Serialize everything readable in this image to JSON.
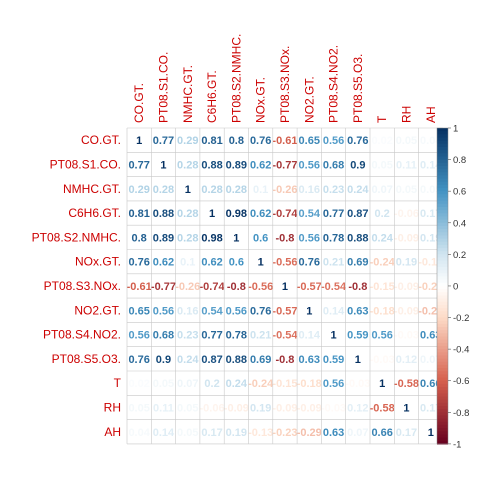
{
  "chart_data": {
    "type": "heatmap",
    "variables": [
      "CO.GT.",
      "PT08.S1.CO.",
      "NMHC.GT.",
      "C6H6.GT.",
      "PT08.S2.NMHC.",
      "NOx.GT.",
      "PT08.S3.NOx.",
      "NO2.GT.",
      "PT08.S4.NO2.",
      "PT08.S5.O3.",
      "T",
      "RH",
      "AH"
    ],
    "matrix": [
      [
        1,
        0.77,
        0.29,
        0.81,
        0.8,
        0.76,
        -0.61,
        0.65,
        0.56,
        0.76,
        0.02,
        0.05,
        0.04
      ],
      [
        0.77,
        1,
        0.28,
        0.88,
        0.89,
        0.62,
        -0.77,
        0.56,
        0.68,
        0.9,
        0.05,
        0.11,
        0.14
      ],
      [
        0.29,
        0.28,
        1,
        0.28,
        0.28,
        0.1,
        -0.26,
        0.16,
        0.23,
        0.24,
        0.07,
        0.05,
        0.05
      ],
      [
        0.81,
        0.88,
        0.28,
        1,
        0.98,
        0.62,
        -0.74,
        0.54,
        0.77,
        0.87,
        0.2,
        -0.06,
        0.17
      ],
      [
        0.8,
        0.89,
        0.28,
        0.98,
        1,
        0.6,
        -0.8,
        0.56,
        0.78,
        0.88,
        0.24,
        -0.09,
        0.19
      ],
      [
        0.76,
        0.62,
        0.1,
        0.62,
        0.6,
        1,
        -0.56,
        0.76,
        0.21,
        0.69,
        -0.24,
        0.19,
        -0.13
      ],
      [
        -0.61,
        -0.77,
        -0.26,
        -0.74,
        -0.8,
        -0.56,
        1,
        -0.57,
        -0.54,
        -0.8,
        -0.15,
        -0.09,
        -0.23
      ],
      [
        0.65,
        0.56,
        0.16,
        0.54,
        0.56,
        0.76,
        -0.57,
        1,
        0.14,
        0.63,
        -0.18,
        -0.09,
        -0.29
      ],
      [
        0.56,
        0.68,
        0.23,
        0.77,
        0.78,
        0.21,
        -0.54,
        0.14,
        1,
        0.59,
        0.56,
        -0.03,
        0.63
      ],
      [
        0.76,
        0.9,
        0.24,
        0.87,
        0.88,
        0.69,
        -0.8,
        0.63,
        0.59,
        1,
        -0.03,
        0.12,
        0.07
      ],
      [
        0.02,
        0.05,
        0.07,
        0.2,
        0.24,
        -0.24,
        -0.15,
        -0.18,
        0.56,
        -0.03,
        1,
        -0.58,
        0.66
      ],
      [
        0.05,
        0.11,
        0.05,
        -0.06,
        -0.09,
        0.19,
        -0.09,
        -0.09,
        -0.03,
        0.12,
        -0.58,
        1,
        0.17
      ],
      [
        0.04,
        0.14,
        0.05,
        0.17,
        0.19,
        -0.13,
        -0.23,
        -0.29,
        0.63,
        0.07,
        0.66,
        0.17,
        1
      ]
    ],
    "colorbar": {
      "range": [
        -1,
        1
      ],
      "ticks": [
        "1",
        "0.8",
        "0.6",
        "0.4",
        "0.2",
        "0",
        "-0.2",
        "-0.4",
        "-0.6",
        "-0.8",
        "-1"
      ]
    },
    "colors": {
      "label": "#cc0000",
      "negative_end": "#67001f",
      "negative_mid": "#d6604d",
      "negative_light": "#fddbc7",
      "neutral": "#ffffff",
      "positive_light": "#d1e5f0",
      "positive_mid": "#4393c3",
      "positive_end": "#053061"
    }
  }
}
